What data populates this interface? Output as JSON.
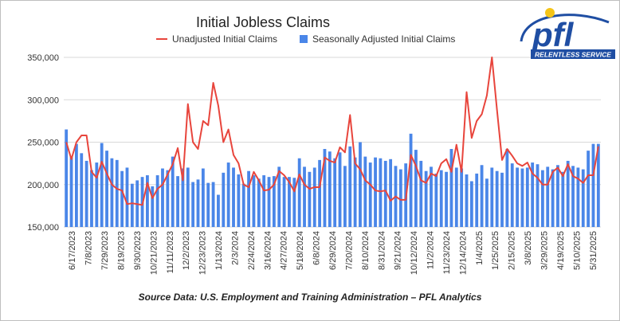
{
  "logo": {
    "letters": "pfl",
    "tagline": "RELENTLESS SERVICE",
    "colors": {
      "primary": "#1f4ea3",
      "accent": "#f5c518"
    }
  },
  "source_note": "Source Data: U.S. Employment and Training Administration – PFL Analytics",
  "chart_data": {
    "type": "bar",
    "title": "Initial Jobless Claims",
    "xlabel": "",
    "ylabel": "",
    "ylim": [
      150000,
      350000
    ],
    "yticks": [
      150000,
      200000,
      250000,
      300000,
      350000
    ],
    "ytick_labels": [
      "150,000",
      "200,000",
      "250,000",
      "300,000",
      "350,000"
    ],
    "grid": true,
    "legend_position": "top",
    "x_tick_labels": [
      "6/17/2023",
      "7/8/2023",
      "7/29/2023",
      "8/19/2023",
      "9/30/2023",
      "10/21/2023",
      "11/11/2023",
      "12/2/2023",
      "12/23/2023",
      "1/13/2024",
      "2/3/2024",
      "2/24/2024",
      "3/16/2024",
      "4/27/2024",
      "5/18/2024",
      "6/8/2024",
      "6/29/2024",
      "7/20/2024",
      "8/10/2024",
      "8/31/2024",
      "9/21/2024",
      "10/12/2024",
      "11/2/2024",
      "11/23/2024",
      "12/14/2024",
      "1/4/2025",
      "1/25/2025",
      "2/15/2025",
      "3/8/2025",
      "3/29/2025",
      "4/19/2025",
      "5/10/2025",
      "5/31/2025"
    ],
    "series": [
      {
        "name": "Unadjusted Initial Claims",
        "type": "line",
        "color": "#e8453c",
        "values": [
          250000,
          230000,
          250000,
          258000,
          258000,
          215000,
          208000,
          227000,
          213000,
          200000,
          195000,
          193000,
          177000,
          178000,
          177000,
          176000,
          202000,
          184000,
          195000,
          200000,
          212000,
          224000,
          243000,
          205000,
          295000,
          250000,
          242000,
          275000,
          270000,
          320000,
          293000,
          250000,
          265000,
          235000,
          225000,
          200000,
          197000,
          215000,
          205000,
          193000,
          194000,
          200000,
          216000,
          211000,
          203000,
          192000,
          212000,
          200000,
          195000,
          197000,
          197000,
          232000,
          228000,
          226000,
          244000,
          238000,
          282000,
          225000,
          218000,
          205000,
          200000,
          193000,
          192000,
          193000,
          181000,
          186000,
          182000,
          182000,
          235000,
          222000,
          205000,
          202000,
          213000,
          210000,
          225000,
          230000,
          215000,
          247000,
          215000,
          309000,
          255000,
          275000,
          283000,
          305000,
          350000,
          288000,
          229000,
          242000,
          234000,
          225000,
          222000,
          226000,
          213000,
          208000,
          200000,
          200000,
          215000,
          220000,
          210000,
          224000,
          210000,
          207000,
          202000,
          211000,
          211000,
          245000
        ]
      },
      {
        "name": "Seasonally Adjusted Initial Claims",
        "type": "bar",
        "color": "#4a86e8",
        "values": [
          265000,
          233000,
          248000,
          237000,
          228000,
          217000,
          226000,
          249000,
          240000,
          231000,
          229000,
          216000,
          220000,
          201000,
          205000,
          209000,
          211000,
          198000,
          211000,
          219000,
          217000,
          233000,
          210000,
          219000,
          220000,
          203000,
          206000,
          219000,
          202000,
          203000,
          188000,
          214000,
          226000,
          220000,
          212000,
          201000,
          216000,
          211000,
          207000,
          211000,
          209000,
          210000,
          221000,
          209000,
          209000,
          208000,
          231000,
          221000,
          215000,
          220000,
          229000,
          242000,
          239000,
          231000,
          238000,
          222000,
          245000,
          232000,
          250000,
          233000,
          226000,
          232000,
          231000,
          228000,
          230000,
          222000,
          218000,
          225000,
          260000,
          241000,
          228000,
          216000,
          221000,
          213000,
          217000,
          215000,
          242000,
          220000,
          219000,
          212000,
          204000,
          213000,
          223000,
          207000,
          220000,
          216000,
          214000,
          242000,
          225000,
          220000,
          219000,
          220000,
          226000,
          224000,
          217000,
          221000,
          218000,
          223000,
          215000,
          228000,
          222000,
          220000,
          218000,
          240000,
          248000,
          248000
        ]
      }
    ]
  }
}
